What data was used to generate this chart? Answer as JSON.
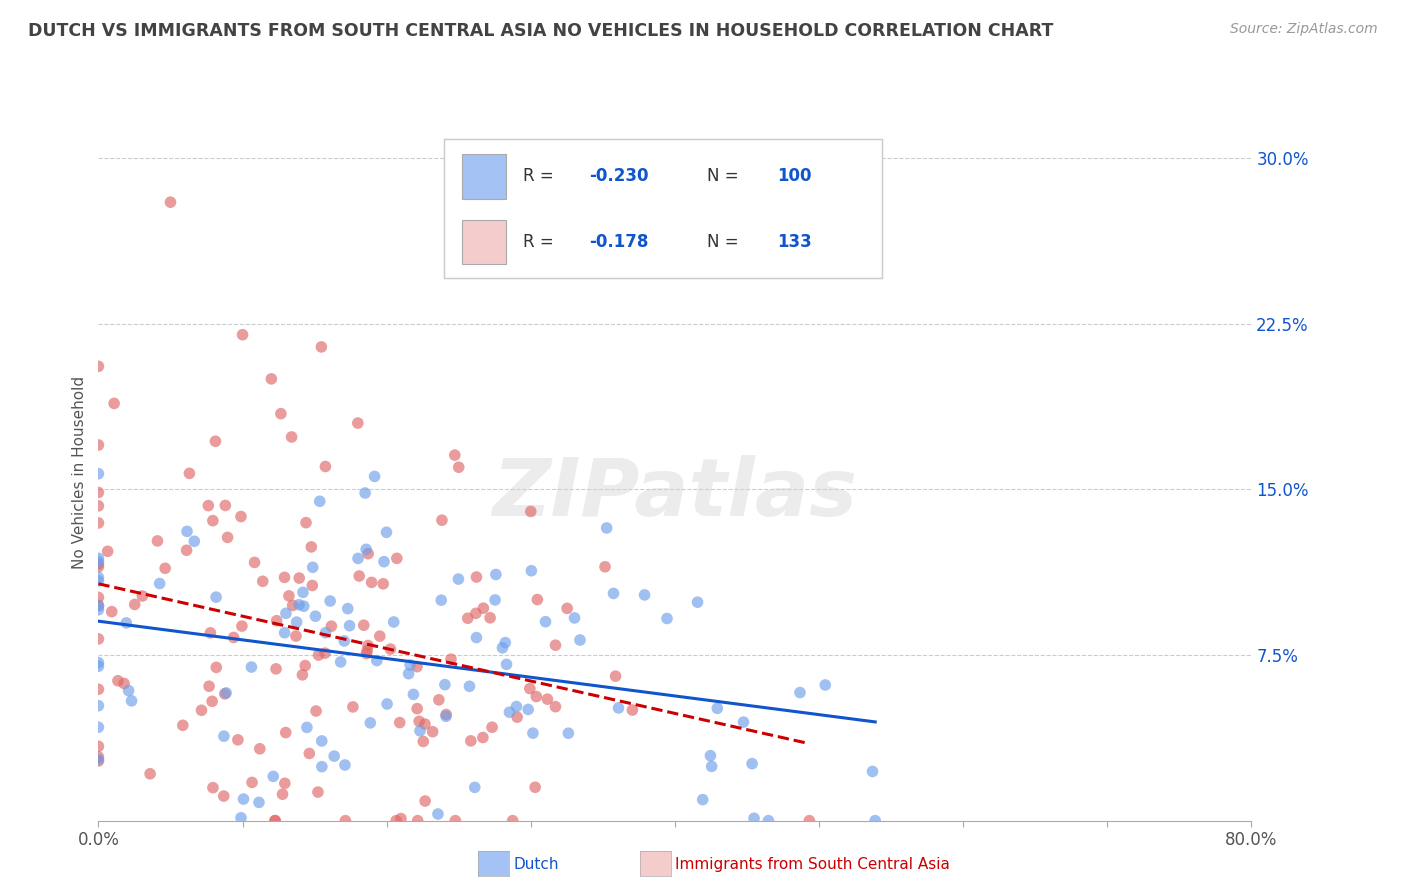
{
  "title": "DUTCH VS IMMIGRANTS FROM SOUTH CENTRAL ASIA NO VEHICLES IN HOUSEHOLD CORRELATION CHART",
  "source_text": "Source: ZipAtlas.com",
  "ylabel": "No Vehicles in Household",
  "yticks_vals": [
    0.075,
    0.15,
    0.225,
    0.3
  ],
  "yticks_labels": [
    "7.5%",
    "15.0%",
    "22.5%",
    "30.0%"
  ],
  "watermark": "ZIPatlas",
  "blue_color": "#a4c2f4",
  "pink_color": "#f4cccc",
  "blue_scatter": "#6d9eeb",
  "pink_scatter": "#e06666",
  "blue_line_color": "#1155cc",
  "pink_line_color": "#cc0000",
  "title_color": "#434343",
  "source_color": "#999999",
  "legend_value_color": "#1155cc",
  "legend_label_color": "#333333",
  "watermark_color": "#d9d9d9",
  "background_color": "#ffffff",
  "grid_color": "#cccccc",
  "x_range": [
    0.0,
    0.8
  ],
  "y_range": [
    0.0,
    0.315
  ],
  "dutch_R": -0.23,
  "dutch_N": 100,
  "immigrant_R": -0.178,
  "immigrant_N": 133,
  "seed": 7
}
